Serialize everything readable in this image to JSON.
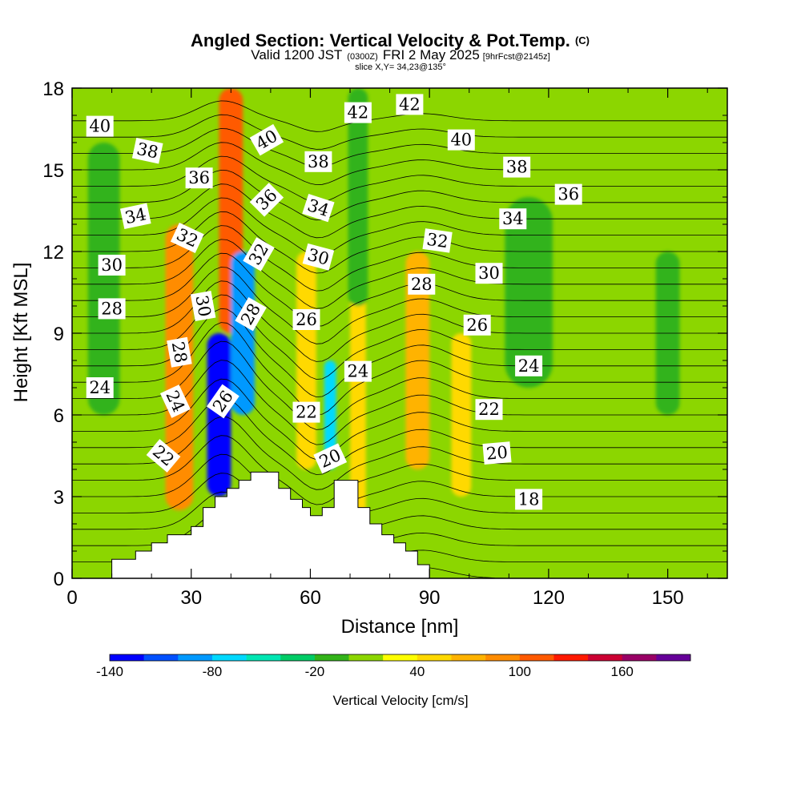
{
  "header": {
    "title_main": "Angled Section: Vertical Velocity & Pot.Temp.",
    "title_mark": "(C)",
    "line2_a": "Valid 1200 JST",
    "line2_b": "(0300Z)",
    "line2_c": "FRI 2 May 2025",
    "line2_d": "[9hrFcst@2145z]",
    "line3": "slice X,Y= 34,23@135°"
  },
  "chart_data": {
    "type": "heatmap",
    "xlabel": "Distance [nm]",
    "ylabel": "Height [Kft MSL]",
    "xlim": [
      0,
      165
    ],
    "ylim": [
      0,
      18
    ],
    "xticks": [
      0,
      30,
      60,
      90,
      120,
      150
    ],
    "yticks": [
      0,
      3,
      6,
      9,
      12,
      15,
      18
    ],
    "grid": false,
    "colorbar": {
      "label": "Vertical Velocity [cm/s]",
      "min": -140,
      "step": 20,
      "tick_values": [
        -140,
        -80,
        -20,
        40,
        100,
        160
      ],
      "tick_labels": [
        "-140",
        "-80",
        "-20",
        "40",
        "100",
        "160"
      ],
      "colors": [
        "#0000ff",
        "#0050ff",
        "#0099ff",
        "#00d9ff",
        "#00e6b3",
        "#00cc66",
        "#33b31a",
        "#8cd600",
        "#ffff00",
        "#ffd900",
        "#ffb300",
        "#ff8c00",
        "#ff5a00",
        "#ff1a00",
        "#cc0033",
        "#990066",
        "#660099"
      ]
    },
    "background_value": 10,
    "bands": [
      {
        "x": 26,
        "w": 4,
        "y0": 3,
        "y1": 11,
        "value": 150
      },
      {
        "x": 27,
        "w": 7,
        "y0": 2.5,
        "y1": 13,
        "value": 90
      },
      {
        "x": 40,
        "w": 6,
        "y0": 9,
        "y1": 18,
        "value": 110
      },
      {
        "x": 37,
        "w": 6,
        "y0": 3,
        "y1": 9,
        "value": -130
      },
      {
        "x": 43,
        "w": 6,
        "y0": 6,
        "y1": 12,
        "value": -90
      },
      {
        "x": 65,
        "w": 3,
        "y0": 4,
        "y1": 8,
        "value": -80
      },
      {
        "x": 59,
        "w": 5,
        "y0": 4,
        "y1": 12,
        "value": 50
      },
      {
        "x": 72,
        "w": 4,
        "y0": 2,
        "y1": 11,
        "value": 50
      },
      {
        "x": 87,
        "w": 6,
        "y0": 4,
        "y1": 12,
        "value": 70
      },
      {
        "x": 98,
        "w": 5,
        "y0": 3,
        "y1": 9,
        "value": 40
      },
      {
        "x": 8,
        "w": 8,
        "y0": 6,
        "y1": 16,
        "value": -10
      },
      {
        "x": 72,
        "w": 5,
        "y0": 10,
        "y1": 18,
        "value": -10
      },
      {
        "x": 115,
        "w": 12,
        "y0": 7,
        "y1": 14,
        "value": -10
      },
      {
        "x": 150,
        "w": 6,
        "y0": 6,
        "y1": 12,
        "value": -10
      }
    ],
    "terrain": [
      [
        0,
        0
      ],
      [
        10,
        0
      ],
      [
        10,
        0.7
      ],
      [
        16,
        0.7
      ],
      [
        16,
        1.0
      ],
      [
        20,
        1.0
      ],
      [
        20,
        1.3
      ],
      [
        24,
        1.3
      ],
      [
        24,
        1.6
      ],
      [
        30,
        1.6
      ],
      [
        30,
        1.9
      ],
      [
        33,
        1.9
      ],
      [
        33,
        2.6
      ],
      [
        36,
        2.6
      ],
      [
        36,
        3.0
      ],
      [
        39,
        3.0
      ],
      [
        39,
        3.3
      ],
      [
        42,
        3.3
      ],
      [
        42,
        3.6
      ],
      [
        45,
        3.6
      ],
      [
        45,
        3.9
      ],
      [
        52,
        3.9
      ],
      [
        52,
        3.3
      ],
      [
        55,
        3.3
      ],
      [
        55,
        2.9
      ],
      [
        58,
        2.9
      ],
      [
        58,
        2.6
      ],
      [
        60,
        2.6
      ],
      [
        60,
        2.3
      ],
      [
        63,
        2.3
      ],
      [
        63,
        2.6
      ],
      [
        66,
        2.6
      ],
      [
        66,
        3.6
      ],
      [
        72,
        3.6
      ],
      [
        72,
        2.6
      ],
      [
        75,
        2.6
      ],
      [
        75,
        2.0
      ],
      [
        78,
        2.0
      ],
      [
        78,
        1.6
      ],
      [
        81,
        1.6
      ],
      [
        81,
        1.3
      ],
      [
        84,
        1.3
      ],
      [
        84,
        1.0
      ],
      [
        87,
        1.0
      ],
      [
        87,
        0.5
      ],
      [
        90,
        0.5
      ],
      [
        90,
        0
      ],
      [
        165,
        0
      ]
    ],
    "contour_levels": [
      16,
      17,
      18,
      19,
      20,
      21,
      22,
      23,
      24,
      25,
      26,
      27,
      28,
      29,
      30,
      31,
      32,
      33,
      34,
      35,
      36,
      37,
      38,
      39,
      40,
      41,
      42,
      43,
      44
    ],
    "contour_labels": [
      {
        "text": "40",
        "x": 7,
        "y": 16.6,
        "angle": 0
      },
      {
        "text": "38",
        "x": 19,
        "y": 15.7,
        "angle": 12
      },
      {
        "text": "36",
        "x": 32,
        "y": 14.7,
        "angle": 0
      },
      {
        "text": "34",
        "x": 16,
        "y": 13.3,
        "angle": -12
      },
      {
        "text": "32",
        "x": 29,
        "y": 12.5,
        "angle": 25
      },
      {
        "text": "30",
        "x": 10,
        "y": 11.5,
        "angle": 0
      },
      {
        "text": "28",
        "x": 10,
        "y": 9.9,
        "angle": 0
      },
      {
        "text": "30",
        "x": 33,
        "y": 10.0,
        "angle": 80
      },
      {
        "text": "28",
        "x": 27,
        "y": 8.3,
        "angle": 80
      },
      {
        "text": "24",
        "x": 7,
        "y": 7.0,
        "angle": 0
      },
      {
        "text": "24",
        "x": 26,
        "y": 6.5,
        "angle": 65
      },
      {
        "text": "22",
        "x": 23,
        "y": 4.5,
        "angle": 40
      },
      {
        "text": "26",
        "x": 38,
        "y": 6.5,
        "angle": -55
      },
      {
        "text": "28",
        "x": 45,
        "y": 9.7,
        "angle": -60
      },
      {
        "text": "32",
        "x": 47,
        "y": 11.9,
        "angle": -60
      },
      {
        "text": "36",
        "x": 49,
        "y": 13.9,
        "angle": -45
      },
      {
        "text": "40",
        "x": 49,
        "y": 16.1,
        "angle": -30
      },
      {
        "text": "38",
        "x": 62,
        "y": 15.3,
        "angle": 0
      },
      {
        "text": "34",
        "x": 62,
        "y": 13.6,
        "angle": 18
      },
      {
        "text": "30",
        "x": 62,
        "y": 11.8,
        "angle": 15
      },
      {
        "text": "26",
        "x": 59,
        "y": 9.5,
        "angle": 0
      },
      {
        "text": "22",
        "x": 59,
        "y": 6.1,
        "angle": 0
      },
      {
        "text": "20",
        "x": 65,
        "y": 4.4,
        "angle": -25
      },
      {
        "text": "24",
        "x": 72,
        "y": 7.6,
        "angle": 0
      },
      {
        "text": "42",
        "x": 72,
        "y": 17.1,
        "angle": 0
      },
      {
        "text": "42",
        "x": 85,
        "y": 17.4,
        "angle": 0
      },
      {
        "text": "40",
        "x": 98,
        "y": 16.1,
        "angle": 0
      },
      {
        "text": "38",
        "x": 112,
        "y": 15.1,
        "angle": 0
      },
      {
        "text": "36",
        "x": 125,
        "y": 14.1,
        "angle": 0
      },
      {
        "text": "34",
        "x": 111,
        "y": 13.2,
        "angle": 0
      },
      {
        "text": "32",
        "x": 92,
        "y": 12.4,
        "angle": 8
      },
      {
        "text": "30",
        "x": 105,
        "y": 11.2,
        "angle": 0
      },
      {
        "text": "28",
        "x": 88,
        "y": 10.8,
        "angle": 0
      },
      {
        "text": "26",
        "x": 102,
        "y": 9.3,
        "angle": 0
      },
      {
        "text": "24",
        "x": 115,
        "y": 7.8,
        "angle": 0
      },
      {
        "text": "22",
        "x": 105,
        "y": 6.2,
        "angle": 0
      },
      {
        "text": "20",
        "x": 107,
        "y": 4.6,
        "angle": -5
      },
      {
        "text": "18",
        "x": 115,
        "y": 2.9,
        "angle": 0
      }
    ]
  }
}
